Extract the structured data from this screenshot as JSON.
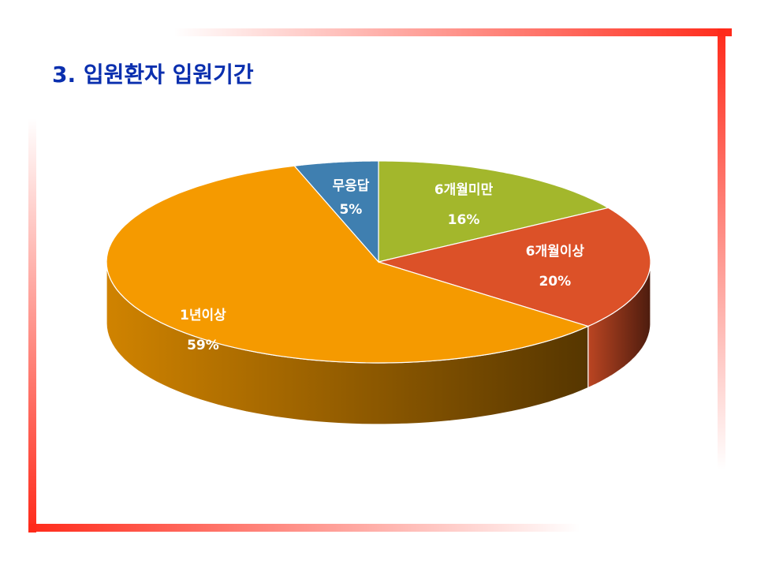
{
  "chart_data": {
    "type": "pie",
    "title": "3. 입원환자 입원기간",
    "categories": [
      "6개월미만",
      "6개월이상",
      "1년이상",
      "무응답"
    ],
    "values": [
      16,
      20,
      59,
      5
    ],
    "value_labels": [
      "16%",
      "20%",
      "59%",
      "5%"
    ],
    "colors": [
      "#a3b72c",
      "#dc5128",
      "#f59a00",
      "#3f7fb0"
    ]
  }
}
